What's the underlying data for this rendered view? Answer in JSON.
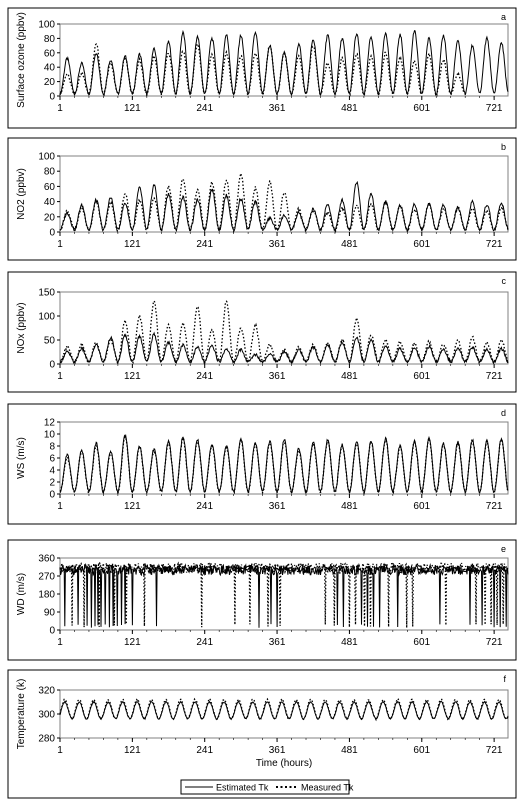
{
  "chart_data": [
    {
      "type": "line",
      "panel_label": "a",
      "ylabel": "Surface ozone (ppbv)",
      "ylim": [
        0,
        100
      ],
      "yticks": [
        0,
        20,
        40,
        60,
        80,
        100
      ],
      "xticks": [
        1,
        121,
        241,
        361,
        481,
        601,
        721
      ],
      "xlim": [
        1,
        744
      ],
      "series": [
        {
          "name": "Estimated Tk",
          "style": "solid",
          "period_hours": 24,
          "daily_peaks": [
            52,
            45,
            60,
            50,
            55,
            58,
            65,
            75,
            88,
            82,
            80,
            85,
            84,
            88,
            70,
            60,
            72,
            78,
            84,
            80,
            86,
            82,
            88,
            85,
            90,
            80,
            84,
            76,
            70,
            80,
            74,
            72,
            78
          ]
        },
        {
          "name": "Measured Tk",
          "style": "dotted",
          "period_hours": 24,
          "daily_peaks": [
            30,
            32,
            72,
            45,
            52,
            50,
            55,
            60,
            62,
            72,
            58,
            60,
            55,
            60,
            70,
            58,
            55,
            70,
            45,
            52,
            58,
            54,
            60,
            52,
            48,
            58,
            50,
            30,
            0,
            0,
            0,
            0,
            0
          ]
        }
      ]
    },
    {
      "type": "line",
      "panel_label": "b",
      "ylabel": "NO2 (ppbv)",
      "ylim": [
        0,
        100
      ],
      "yticks": [
        0,
        20,
        40,
        60,
        80,
        100
      ],
      "xticks": [
        1,
        121,
        241,
        361,
        481,
        601,
        721
      ],
      "xlim": [
        1,
        744
      ],
      "series": [
        {
          "name": "Estimated Tk",
          "style": "solid",
          "period_hours": 24,
          "daily_peaks": [
            25,
            35,
            42,
            45,
            38,
            58,
            62,
            50,
            46,
            42,
            56,
            48,
            44,
            40,
            18,
            22,
            25,
            30,
            36,
            42,
            66,
            50,
            40,
            35,
            36,
            38,
            35,
            32,
            40,
            36,
            38,
            44,
            52
          ]
        },
        {
          "name": "Measured Tk",
          "style": "dotted",
          "period_hours": 24,
          "daily_peaks": [
            28,
            32,
            40,
            38,
            50,
            42,
            45,
            60,
            70,
            55,
            65,
            68,
            76,
            58,
            66,
            52,
            30,
            28,
            26,
            32,
            34,
            38,
            40,
            34,
            30,
            36,
            30,
            32,
            30,
            28,
            32,
            30,
            30
          ]
        }
      ]
    },
    {
      "type": "line",
      "panel_label": "c",
      "ylabel": "NOx (ppbv)",
      "ylim": [
        0,
        150
      ],
      "yticks": [
        0,
        50,
        100,
        150
      ],
      "xticks": [
        1,
        121,
        241,
        361,
        481,
        601,
        721
      ],
      "xlim": [
        1,
        744
      ],
      "series": [
        {
          "name": "Estimated Tk",
          "style": "solid",
          "period_hours": 24,
          "daily_peaks": [
            25,
            32,
            40,
            55,
            60,
            58,
            62,
            45,
            40,
            35,
            38,
            32,
            30,
            20,
            22,
            25,
            30,
            35,
            40,
            45,
            55,
            50,
            38,
            32,
            34,
            36,
            30,
            32,
            35,
            30,
            32,
            34,
            40
          ]
        },
        {
          "name": "Measured Tk",
          "style": "dotted",
          "period_hours": 24,
          "daily_peaks": [
            35,
            40,
            45,
            50,
            90,
            100,
            130,
            80,
            85,
            120,
            70,
            130,
            75,
            80,
            40,
            30,
            35,
            40,
            45,
            50,
            95,
            60,
            50,
            45,
            42,
            46,
            40,
            48,
            55,
            45,
            50,
            52,
            60
          ]
        }
      ]
    },
    {
      "type": "line",
      "panel_label": "d",
      "ylabel": "WS (m/s)",
      "ylim": [
        0,
        12
      ],
      "yticks": [
        0,
        2,
        4,
        6,
        8,
        10,
        12
      ],
      "xticks": [
        1,
        121,
        241,
        361,
        481,
        601,
        721
      ],
      "xlim": [
        1,
        744
      ],
      "series": [
        {
          "name": "Estimated Tk",
          "style": "solid",
          "period_hours": 24,
          "daily_peaks": [
            6.5,
            7.2,
            8.5,
            7.0,
            9.8,
            8.0,
            7.5,
            8.8,
            9.5,
            9.0,
            8.2,
            8.0,
            9.2,
            8.5,
            8.8,
            9.0,
            7.5,
            8.6,
            9.0,
            8.2,
            8.6,
            8.8,
            9.2,
            8.0,
            8.8,
            9.2,
            8.4,
            8.6,
            9.0,
            8.8,
            9.2,
            8.6,
            8.8
          ]
        },
        {
          "name": "Measured Tk",
          "style": "dotted",
          "period_hours": 24,
          "daily_peaks": [
            6.0,
            7.0,
            8.0,
            6.8,
            9.5,
            7.8,
            7.2,
            8.5,
            9.2,
            8.8,
            8.0,
            7.8,
            9.0,
            8.2,
            8.6,
            8.8,
            7.2,
            8.4,
            8.8,
            8.0,
            8.4,
            8.6,
            9.0,
            7.8,
            8.6,
            9.0,
            8.2,
            8.4,
            8.8,
            8.6,
            9.0,
            8.4,
            8.6
          ]
        }
      ]
    },
    {
      "type": "line",
      "panel_label": "e",
      "ylabel": "WD (m/s)",
      "ylim": [
        0,
        360
      ],
      "yticks": [
        0,
        90,
        180,
        270,
        360
      ],
      "xticks": [
        1,
        121,
        241,
        361,
        481,
        601,
        721
      ],
      "xlim": [
        1,
        744
      ],
      "series": [
        {
          "name": "Estimated Tk",
          "style": "solid",
          "base_level": 300,
          "dropout_hours": [
            8,
            30,
            45,
            52,
            58,
            63,
            68,
            75,
            82,
            88,
            95,
            102,
            108,
            120,
            160,
            330,
            350,
            360,
            460,
            470,
            500,
            510,
            520,
            530,
            560,
            630,
            680,
            700,
            720,
            730,
            740
          ]
        },
        {
          "name": "Measured Tk",
          "style": "dotted",
          "base_level": 310,
          "dropout_hours": [
            20,
            40,
            65,
            90,
            110,
            140,
            235,
            290,
            315,
            345,
            365,
            440,
            455,
            480,
            490,
            505,
            515,
            545,
            575,
            585,
            640,
            690,
            705,
            715,
            725,
            735
          ]
        }
      ]
    },
    {
      "type": "line",
      "panel_label": "f",
      "ylabel": "Temperature (k)",
      "xlabel": "Time (hours)",
      "ylim": [
        280,
        320
      ],
      "yticks": [
        280,
        300,
        320
      ],
      "xticks": [
        1,
        121,
        241,
        361,
        481,
        601,
        721
      ],
      "xlim": [
        1,
        744
      ],
      "series": [
        {
          "name": "Estimated Tk",
          "style": "solid",
          "period_hours": 24,
          "mean": 303,
          "amplitude": 7
        },
        {
          "name": "Measured Tk",
          "style": "dotted",
          "period_hours": 24,
          "mean": 304,
          "amplitude": 8
        }
      ]
    }
  ],
  "legend": {
    "entries": [
      "Estimated Tk",
      "Measured Tk"
    ],
    "placement": "bottom-center"
  }
}
